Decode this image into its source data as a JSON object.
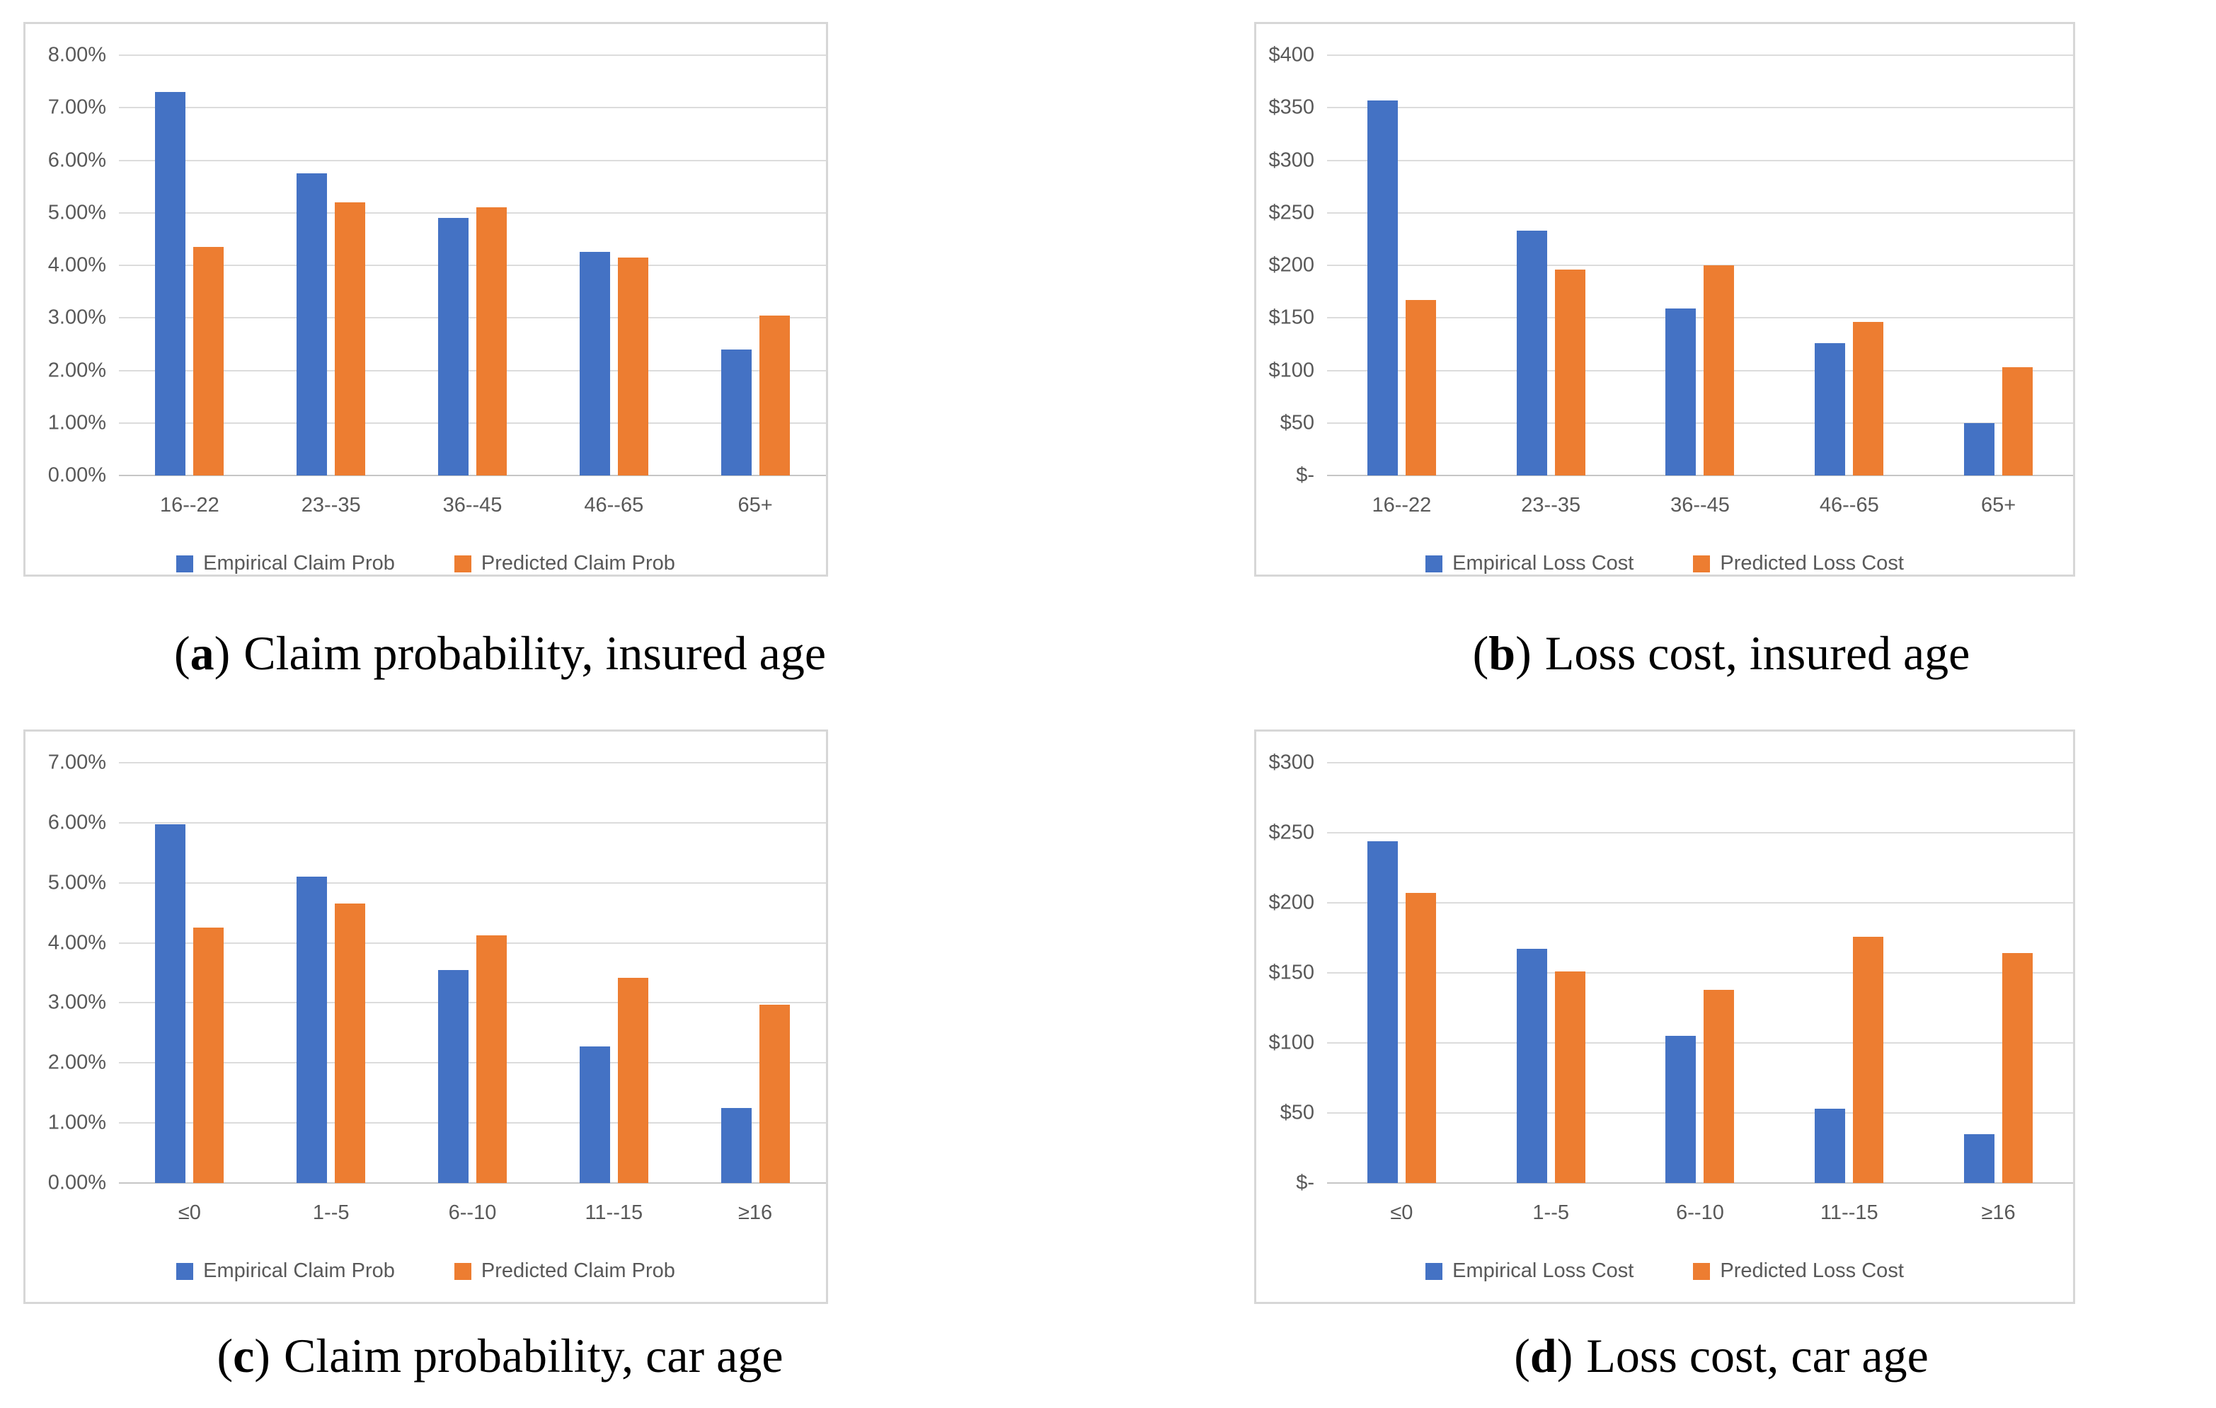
{
  "colors": {
    "empirical_blue": "#4472C4",
    "predicted_orange": "#ED7D31",
    "gridline": "#DCDCDC",
    "axis_text": "#595959",
    "panel_border": "#D7D7D7"
  },
  "chart_data": [
    {
      "type": "bar",
      "panel": "a",
      "caption": {
        "open": "(",
        "letter": "a",
        "close": ")",
        "title": "Claim probability, insured age"
      },
      "categories": [
        "16--22",
        "23--35",
        "36--45",
        "46--65",
        "65+"
      ],
      "series": [
        {
          "name": "Empirical Claim Prob",
          "color": "#4472C4",
          "values": [
            7.3,
            5.75,
            4.9,
            4.25,
            2.4
          ]
        },
        {
          "name": "Predicted Claim Prob",
          "color": "#ED7D31",
          "values": [
            4.35,
            5.2,
            5.1,
            4.15,
            3.05
          ]
        }
      ],
      "y_ticks": [
        "8.00%",
        "7.00%",
        "6.00%",
        "5.00%",
        "4.00%",
        "3.00%",
        "2.00%",
        "1.00%",
        "0.00%"
      ],
      "ylim": [
        0,
        8
      ],
      "unit": "%",
      "grid": true,
      "legend_position": "bottom"
    },
    {
      "type": "bar",
      "panel": "b",
      "caption": {
        "open": "(",
        "letter": "b",
        "close": ")",
        "title": "Loss cost, insured age"
      },
      "categories": [
        "16--22",
        "23--35",
        "36--45",
        "46--65",
        "65+"
      ],
      "series": [
        {
          "name": "Empirical Loss Cost",
          "color": "#4472C4",
          "values": [
            357,
            233,
            159,
            126,
            50
          ]
        },
        {
          "name": "Predicted Loss Cost",
          "color": "#ED7D31",
          "values": [
            167,
            196,
            200,
            146,
            103
          ]
        }
      ],
      "y_ticks": [
        "$400",
        "$350",
        "$300",
        "$250",
        "$200",
        "$150",
        "$100",
        "$50",
        "$-"
      ],
      "ylim": [
        0,
        400
      ],
      "unit": "$",
      "grid": true,
      "legend_position": "bottom"
    },
    {
      "type": "bar",
      "panel": "c",
      "caption": {
        "open": "(",
        "letter": "c",
        "close": ")",
        "title": "Claim probability, car age"
      },
      "categories": [
        "≤0",
        "1--5",
        "6--10",
        "11--15",
        "≥16"
      ],
      "series": [
        {
          "name": "Empirical Claim Prob",
          "color": "#4472C4",
          "values": [
            5.97,
            5.1,
            3.55,
            2.28,
            1.25
          ]
        },
        {
          "name": "Predicted Claim Prob",
          "color": "#ED7D31",
          "values": [
            4.25,
            4.65,
            4.12,
            3.42,
            2.97
          ]
        }
      ],
      "y_ticks": [
        "7.00%",
        "6.00%",
        "5.00%",
        "4.00%",
        "3.00%",
        "2.00%",
        "1.00%",
        "0.00%"
      ],
      "ylim": [
        0,
        7
      ],
      "unit": "%",
      "grid": true,
      "legend_position": "bottom"
    },
    {
      "type": "bar",
      "panel": "d",
      "caption": {
        "open": "(",
        "letter": "d",
        "close": ")",
        "title": "Loss cost, car age"
      },
      "categories": [
        "≤0",
        "1--5",
        "6--10",
        "11--15",
        "≥16"
      ],
      "series": [
        {
          "name": "Empirical Loss Cost",
          "color": "#4472C4",
          "values": [
            244,
            167,
            105,
            53,
            35
          ]
        },
        {
          "name": "Predicted Loss Cost",
          "color": "#ED7D31",
          "values": [
            207,
            151,
            138,
            176,
            164
          ]
        }
      ],
      "y_ticks": [
        "$300",
        "$250",
        "$200",
        "$150",
        "$100",
        "$50",
        "$-"
      ],
      "ylim": [
        0,
        300
      ],
      "unit": "$",
      "grid": true,
      "legend_position": "bottom"
    }
  ]
}
